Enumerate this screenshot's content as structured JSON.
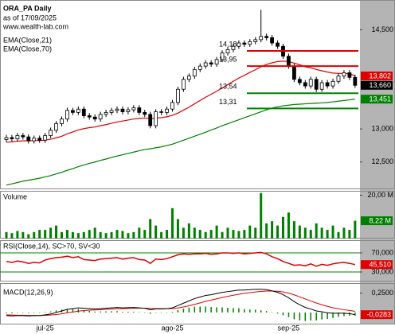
{
  "chart_data": [
    {
      "type": "candlestick",
      "title": "ORA_PA Daily",
      "subtitle": "as of 17/09/2025",
      "source": "www.wealth-lab.com",
      "categories": [
        null,
        null,
        null,
        null,
        null,
        null,
        null,
        "jul-25",
        null,
        null,
        null,
        null,
        null,
        null,
        null,
        null,
        null,
        null,
        null,
        null,
        null,
        null,
        null,
        null,
        null,
        null,
        null,
        null,
        null,
        null,
        "ago-25",
        null,
        null,
        null,
        null,
        null,
        null,
        null,
        null,
        null,
        null,
        null,
        null,
        null,
        null,
        null,
        null,
        null,
        null,
        null,
        null,
        "sep-25",
        null,
        null,
        null,
        null,
        null,
        null,
        null,
        null,
        null,
        null,
        null,
        null
      ],
      "open": [
        12840,
        12870,
        12850,
        12900,
        12880,
        12820,
        12860,
        12830,
        12900,
        12980,
        13080,
        13150,
        13280,
        13250,
        13300,
        13200,
        13180,
        13150,
        13220,
        13250,
        13280,
        13300,
        13260,
        13290,
        13320,
        13250,
        13220,
        13050,
        13260,
        13250,
        13300,
        13400,
        13600,
        13750,
        13800,
        13900,
        13950,
        14000,
        13980,
        14050,
        14150,
        14200,
        14250,
        14300,
        14280,
        14320,
        14350,
        14400,
        14380,
        14300,
        14250,
        14100,
        13950,
        13750,
        13700,
        13650,
        13750,
        13600,
        13700,
        13650,
        13720,
        13800,
        13850,
        13780
      ],
      "high": [
        12910,
        12910,
        12940,
        12940,
        12920,
        12900,
        12900,
        12940,
        13020,
        13120,
        13190,
        13320,
        13320,
        13340,
        13340,
        13240,
        13220,
        13260,
        13290,
        13320,
        13340,
        13340,
        13330,
        13360,
        13360,
        13290,
        13260,
        13300,
        13300,
        13340,
        13440,
        13640,
        13790,
        13840,
        13940,
        13990,
        14040,
        14040,
        14090,
        14190,
        14240,
        14290,
        14340,
        14340,
        14360,
        14390,
        14800,
        14440,
        14420,
        14340,
        14290,
        14140,
        13990,
        13790,
        13740,
        13790,
        13790,
        13740,
        13740,
        13760,
        13840,
        13890,
        13890,
        13820
      ],
      "low": [
        12800,
        12810,
        12810,
        12840,
        12780,
        12780,
        12790,
        12790,
        12860,
        12940,
        13040,
        13110,
        13210,
        13210,
        13160,
        13140,
        13110,
        13110,
        13180,
        13210,
        13240,
        13220,
        13220,
        13250,
        13210,
        13180,
        13010,
        13010,
        13210,
        13210,
        13260,
        13360,
        13560,
        13710,
        13760,
        13860,
        13910,
        13940,
        13940,
        14010,
        14110,
        14160,
        14210,
        14240,
        14240,
        14280,
        14310,
        14340,
        14260,
        14210,
        14060,
        13910,
        13710,
        13660,
        13610,
        13610,
        13560,
        13560,
        13610,
        13610,
        13680,
        13760,
        13740,
        13620
      ],
      "close": [
        12870,
        12850,
        12900,
        12880,
        12820,
        12860,
        12830,
        12900,
        12980,
        13080,
        13150,
        13280,
        13250,
        13300,
        13200,
        13180,
        13150,
        13220,
        13250,
        13280,
        13300,
        13260,
        13290,
        13320,
        13250,
        13220,
        13050,
        13260,
        13250,
        13300,
        13400,
        13600,
        13750,
        13800,
        13900,
        13950,
        14000,
        13980,
        14050,
        14150,
        14200,
        14250,
        14300,
        14280,
        14320,
        14350,
        14400,
        14380,
        14300,
        14250,
        14100,
        13950,
        13750,
        13700,
        13650,
        13750,
        13600,
        13700,
        13650,
        13720,
        13800,
        13850,
        13780,
        13660
      ],
      "series": [
        {
          "name": "EMA(Close,21)",
          "color": "#e00000",
          "values": [
            12800,
            12805,
            12815,
            12820,
            12820,
            12825,
            12825,
            12830,
            12845,
            12865,
            12890,
            12925,
            12955,
            12985,
            13005,
            13020,
            13030,
            13050,
            13065,
            13085,
            13105,
            13120,
            13135,
            13150,
            13160,
            13165,
            13155,
            13165,
            13170,
            13185,
            13205,
            13240,
            13285,
            13330,
            13380,
            13430,
            13480,
            13525,
            13570,
            13620,
            13670,
            13720,
            13770,
            13810,
            13855,
            13895,
            13940,
            13975,
            14000,
            14020,
            14025,
            14020,
            13995,
            13970,
            13940,
            13925,
            13900,
            13880,
            13860,
            13845,
            13840,
            13840,
            13835,
            13802
          ]
        },
        {
          "name": "EMA(Close,70)",
          "color": "#008000",
          "values": [
            12150,
            12170,
            12190,
            12210,
            12225,
            12240,
            12255,
            12275,
            12295,
            12320,
            12345,
            12375,
            12400,
            12430,
            12455,
            12480,
            12500,
            12525,
            12545,
            12570,
            12590,
            12610,
            12630,
            12650,
            12670,
            12690,
            12700,
            12715,
            12730,
            12750,
            12770,
            12800,
            12830,
            12860,
            12890,
            12920,
            12950,
            12985,
            13015,
            13050,
            13080,
            13110,
            13140,
            13170,
            13200,
            13230,
            13260,
            13290,
            13315,
            13335,
            13350,
            13360,
            13370,
            13375,
            13380,
            13385,
            13390,
            13395,
            13400,
            13410,
            13420,
            13430,
            13440,
            13451
          ]
        }
      ],
      "levels": [
        {
          "value": 14180,
          "label": "14,18",
          "color": "#e00000"
        },
        {
          "value": 13950,
          "label": "13,95",
          "color": "#e00000"
        },
        {
          "value": 13540,
          "label": "13,54",
          "color": "#008000"
        },
        {
          "value": 13310,
          "label": "13,31",
          "color": "#008000"
        }
      ],
      "price_tags": [
        {
          "value": 13802,
          "label": "13,802",
          "color": "#e00000"
        },
        {
          "value": 13660,
          "label": "13,660",
          "color": "#000000"
        },
        {
          "value": 13451,
          "label": "13,451",
          "color": "#008000"
        }
      ],
      "ylim": [
        12100,
        14950
      ],
      "yticks": [
        {
          "value": 12500,
          "label": "12,500"
        },
        {
          "value": 13000,
          "label": "13,000"
        },
        {
          "value": 14500,
          "label": "14,500"
        }
      ]
    },
    {
      "type": "bar",
      "title": "Volume",
      "color": "#008000",
      "values": [
        3,
        2.5,
        3.5,
        3,
        2,
        3,
        4,
        4,
        5,
        6,
        3,
        4,
        3,
        2.5,
        3,
        4,
        5,
        3,
        2.5,
        3,
        4,
        3.5,
        2.5,
        3,
        5,
        4,
        9,
        6,
        3,
        4,
        14,
        9,
        5,
        7,
        5,
        4,
        3,
        4,
        6,
        3,
        5,
        4,
        3.5,
        4,
        6,
        5,
        21,
        7,
        8,
        6,
        10,
        12,
        8,
        6,
        5,
        4,
        7,
        5,
        4,
        6,
        3,
        5,
        4,
        8.22
      ],
      "ylim": [
        0,
        22
      ],
      "yticks": [
        {
          "value": 20,
          "label": "20,00 M"
        }
      ],
      "last_tag": {
        "value": 8.22,
        "label": "8,22 M"
      }
    },
    {
      "type": "line",
      "title": "RSI(Close,14), SC>70, SV<30",
      "color": "#e00000",
      "values": [
        52,
        50,
        53,
        51,
        48,
        50,
        49,
        55,
        58,
        60,
        61,
        63,
        60,
        62,
        56,
        55,
        54,
        57,
        58,
        59,
        60,
        57,
        59,
        60,
        56,
        55,
        48,
        57,
        56,
        58,
        62,
        66,
        68,
        67,
        68,
        68,
        69,
        67,
        68,
        70,
        70,
        69,
        70,
        68,
        69,
        70,
        71,
        68,
        62,
        58,
        52,
        48,
        44,
        45,
        43,
        47,
        42,
        46,
        44,
        47,
        49,
        50,
        48,
        45.51
      ],
      "ylim": [
        10,
        100
      ],
      "yticks": [
        {
          "value": 70,
          "label": "70,000"
        },
        {
          "value": 30,
          "label": "30,000"
        }
      ],
      "band_color": "#008000",
      "last_tag": {
        "value": 45.51,
        "label": "45,510"
      }
    },
    {
      "type": "macd",
      "title": "MACD(12,26,9)",
      "macd": [
        -0.04,
        -0.045,
        -0.04,
        -0.04,
        -0.045,
        -0.04,
        -0.04,
        -0.03,
        -0.02,
        0,
        0.02,
        0.04,
        0.05,
        0.06,
        0.055,
        0.05,
        0.045,
        0.05,
        0.055,
        0.06,
        0.065,
        0.06,
        0.062,
        0.065,
        0.06,
        0.055,
        0.035,
        0.045,
        0.045,
        0.05,
        0.06,
        0.09,
        0.12,
        0.15,
        0.18,
        0.2,
        0.22,
        0.23,
        0.245,
        0.26,
        0.27,
        0.28,
        0.29,
        0.29,
        0.295,
        0.3,
        0.3,
        0.295,
        0.28,
        0.26,
        0.23,
        0.19,
        0.14,
        0.1,
        0.065,
        0.045,
        0.02,
        0.01,
        -0.005,
        -0.01,
        -0.01,
        -0.01,
        -0.015,
        -0.0283
      ],
      "signal": [
        -0.03,
        -0.033,
        -0.035,
        -0.036,
        -0.038,
        -0.038,
        -0.039,
        -0.037,
        -0.033,
        -0.027,
        -0.017,
        -0.005,
        0.006,
        0.017,
        0.025,
        0.03,
        0.033,
        0.036,
        0.04,
        0.044,
        0.048,
        0.05,
        0.052,
        0.055,
        0.056,
        0.056,
        0.052,
        0.05,
        0.049,
        0.049,
        0.051,
        0.059,
        0.071,
        0.087,
        0.105,
        0.124,
        0.143,
        0.16,
        0.177,
        0.194,
        0.209,
        0.223,
        0.236,
        0.247,
        0.257,
        0.265,
        0.272,
        0.277,
        0.277,
        0.274,
        0.265,
        0.25,
        0.228,
        0.202,
        0.175,
        0.149,
        0.123,
        0.1,
        0.079,
        0.061,
        0.047,
        0.036,
        0.026,
        0.015
      ],
      "histogram": [
        -0.01,
        -0.012,
        -0.005,
        -0.004,
        -0.007,
        -0.002,
        -0.001,
        0.007,
        0.013,
        0.027,
        0.037,
        0.045,
        0.044,
        0.043,
        0.03,
        0.02,
        0.012,
        0.014,
        0.015,
        0.016,
        0.017,
        0.01,
        0.01,
        0.01,
        0.004,
        -0.001,
        -0.017,
        -0.005,
        -0.004,
        0.001,
        0.009,
        0.031,
        0.049,
        0.063,
        0.075,
        0.076,
        0.077,
        0.07,
        0.068,
        0.066,
        0.061,
        0.057,
        0.054,
        0.043,
        0.038,
        0.035,
        0.028,
        0.018,
        0.003,
        -0.014,
        -0.035,
        -0.06,
        -0.088,
        -0.102,
        -0.11,
        -0.104,
        -0.103,
        -0.09,
        -0.084,
        -0.071,
        -0.057,
        -0.046,
        -0.041,
        -0.043
      ],
      "macd_color": "#000000",
      "signal_color": "#e00000",
      "histogram_color": "#008000",
      "ylim": [
        -0.155,
        0.38
      ],
      "yticks": [
        {
          "value": 0.25,
          "label": "0,2500"
        }
      ],
      "last_tag": {
        "value": -0.0283,
        "label": "-0,0283"
      }
    }
  ]
}
